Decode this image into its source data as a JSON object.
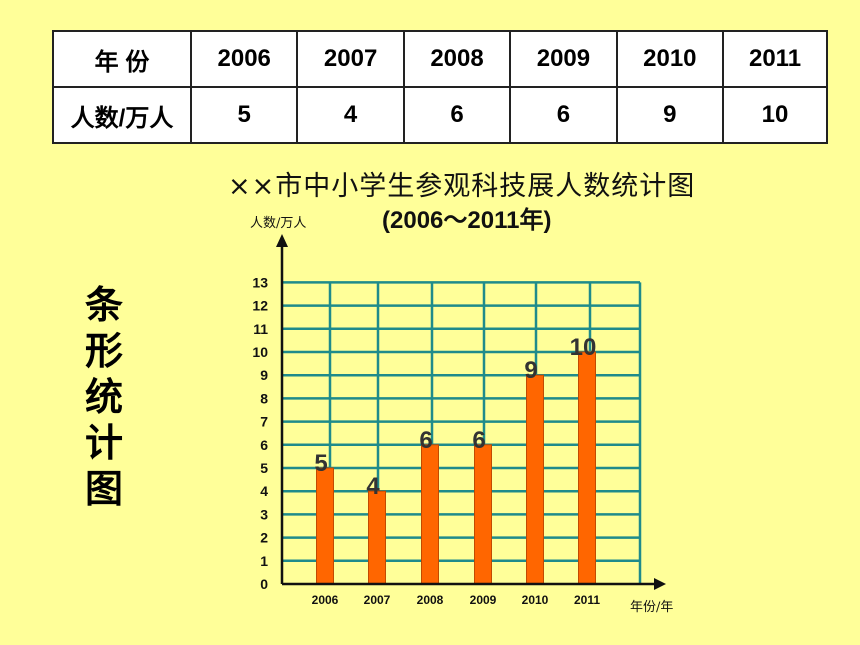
{
  "table": {
    "row_header_year": "年 份",
    "row_header_count": "人数/万人",
    "years": [
      "2006",
      "2007",
      "2008",
      "2009",
      "2010",
      "2011"
    ],
    "counts": [
      "5",
      "4",
      "6",
      "6",
      "9",
      "10"
    ]
  },
  "side_title": "条形统计图",
  "chart_data": {
    "type": "bar",
    "title": "××市中小学生参观科技展人数统计图",
    "subtitle": "(2006～2011年)",
    "xlabel": "年份/年",
    "ylabel": "人数/万人",
    "categories": [
      "2006",
      "2007",
      "2008",
      "2009",
      "2010",
      "2011"
    ],
    "values": [
      5,
      4,
      6,
      6,
      9,
      10
    ],
    "ylim": [
      0,
      13
    ],
    "yticks": [
      0,
      1,
      2,
      3,
      4,
      5,
      6,
      7,
      8,
      9,
      10,
      11,
      12,
      13
    ],
    "grid": true,
    "colors": {
      "bar": "#ff6600",
      "bar_edge": "#c24a00",
      "grid": "#1f8b8b",
      "axis": "#111111"
    }
  }
}
